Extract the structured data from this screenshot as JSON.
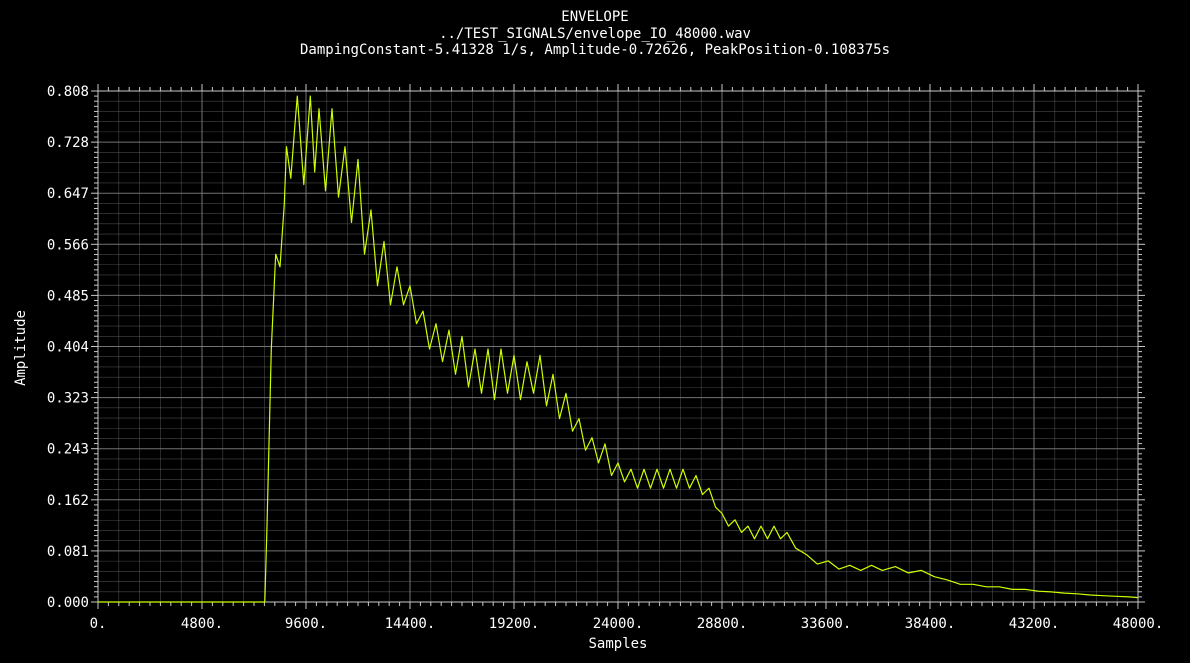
{
  "chart_data": {
    "type": "line",
    "title": "ENVELOPE",
    "subtitle": "../TEST_SIGNALS/envelope_IO_48000.wav",
    "info": "DampingConstant-5.41328 1/s, Amplitude-0.72626, PeakPosition-0.108375s",
    "xlabel": "Samples",
    "ylabel": "Amplitude",
    "xlim": [
      0,
      48000
    ],
    "ylim": [
      0,
      0.808
    ],
    "x_ticks": [
      "0.",
      "4800.",
      "9600.",
      "14400.",
      "19200.",
      "24000.",
      "28800.",
      "33600.",
      "38400.",
      "43200.",
      "48000."
    ],
    "y_ticks": [
      "0.000",
      "0.081",
      "0.162",
      "0.243",
      "0.323",
      "0.404",
      "0.485",
      "0.566",
      "0.647",
      "0.728",
      "0.808"
    ],
    "grid": true,
    "colors": {
      "line": "#ccff00",
      "grid": "#808080",
      "background": "#000000",
      "text": "#ffffff"
    },
    "series": [
      {
        "values_x": [
          0,
          7700,
          7800,
          8000,
          8200,
          8400,
          8600,
          8700,
          8900,
          9100,
          9200,
          9500,
          9800,
          10000,
          10200,
          10500,
          10800,
          11100,
          11400,
          11700,
          12000,
          12300,
          12600,
          12900,
          13200,
          13500,
          13800,
          14100,
          14400,
          14700,
          15000,
          15300,
          15600,
          15900,
          16200,
          16500,
          16800,
          17100,
          17400,
          17700,
          18000,
          18300,
          18600,
          18900,
          19200,
          19500,
          19800,
          20100,
          20400,
          20700,
          21000,
          21300,
          21600,
          21900,
          22200,
          22500,
          22800,
          23100,
          23400,
          23700,
          24000,
          24300,
          24600,
          24900,
          25200,
          25500,
          25800,
          26100,
          26400,
          26700,
          27000,
          27300,
          27600,
          27900,
          28200,
          28500,
          28800,
          29100,
          29400,
          29700,
          30000,
          30300,
          30600,
          30900,
          31200,
          31500,
          31800,
          32200,
          32700,
          33200,
          33700,
          34200,
          34700,
          35200,
          35700,
          36200,
          36800,
          37400,
          38000,
          38600,
          39200,
          39800,
          40400,
          41000,
          41600,
          42200,
          42800,
          43400,
          44000,
          44600,
          45200,
          45800,
          46400,
          47000,
          47600,
          48000
        ],
        "values": [
          0.0,
          0.0,
          0.12,
          0.4,
          0.55,
          0.53,
          0.63,
          0.72,
          0.67,
          0.76,
          0.8,
          0.66,
          0.8,
          0.68,
          0.78,
          0.65,
          0.78,
          0.64,
          0.72,
          0.6,
          0.7,
          0.55,
          0.62,
          0.5,
          0.57,
          0.47,
          0.53,
          0.47,
          0.5,
          0.44,
          0.46,
          0.4,
          0.44,
          0.38,
          0.43,
          0.36,
          0.42,
          0.34,
          0.4,
          0.33,
          0.4,
          0.32,
          0.4,
          0.33,
          0.39,
          0.32,
          0.38,
          0.33,
          0.39,
          0.31,
          0.36,
          0.29,
          0.33,
          0.27,
          0.29,
          0.24,
          0.26,
          0.22,
          0.25,
          0.2,
          0.22,
          0.19,
          0.21,
          0.18,
          0.21,
          0.18,
          0.21,
          0.18,
          0.21,
          0.18,
          0.21,
          0.18,
          0.2,
          0.17,
          0.18,
          0.15,
          0.14,
          0.12,
          0.13,
          0.11,
          0.12,
          0.1,
          0.12,
          0.1,
          0.12,
          0.1,
          0.11,
          0.085,
          0.075,
          0.06,
          0.065,
          0.052,
          0.058,
          0.05,
          0.058,
          0.05,
          0.056,
          0.046,
          0.05,
          0.04,
          0.035,
          0.028,
          0.028,
          0.024,
          0.024,
          0.02,
          0.02,
          0.017,
          0.016,
          0.014,
          0.013,
          0.011,
          0.01,
          0.009,
          0.008,
          0.007
        ]
      }
    ]
  }
}
